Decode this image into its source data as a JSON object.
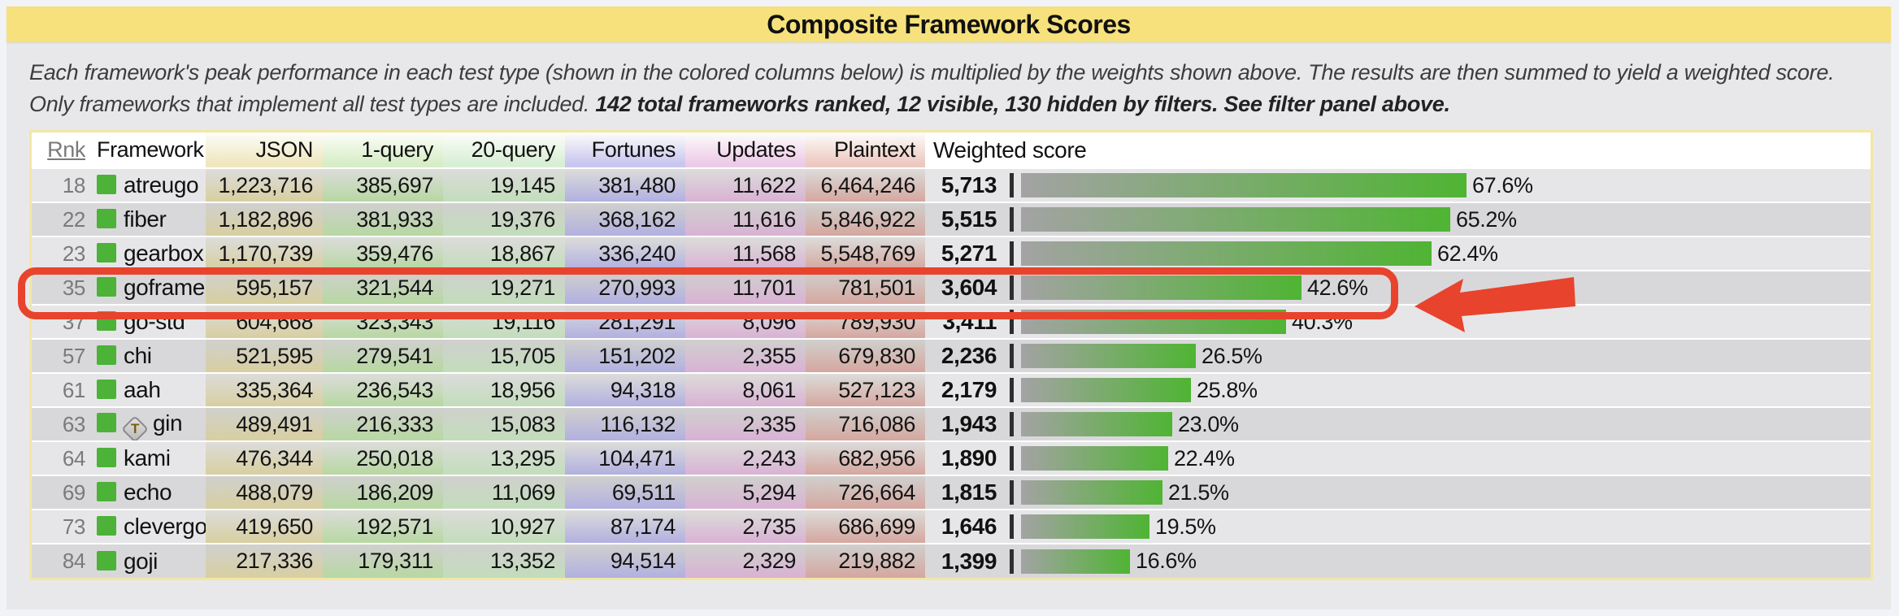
{
  "title": "Composite Framework Scores",
  "description": {
    "normal": "Each framework's peak performance in each test type (shown in the colored columns below) is multiplied by the weights shown above. The results are then summed to yield a weighted score. Only frameworks that implement all test types are included. ",
    "bold": "142 total frameworks ranked, 12 visible, 130 hidden by filters. See filter panel above."
  },
  "table": {
    "rank_header": "Rnk",
    "framework_header": "Framework",
    "columns": [
      {
        "label": "JSON",
        "header_color": "#eee7bd",
        "cell_color": "#d8cfa0"
      },
      {
        "label": "1-query",
        "header_color": "#d7edc6",
        "cell_color": "#b7d8a2"
      },
      {
        "label": "20-query",
        "header_color": "#d8efd4",
        "cell_color": "#c2ddbb"
      },
      {
        "label": "Fortunes",
        "header_color": "#c9c6ef",
        "cell_color": "#b2b0e0"
      },
      {
        "label": "Updates",
        "header_color": "#edcae8",
        "cell_color": "#d9b2d4"
      },
      {
        "label": "Plaintext",
        "header_color": "#ecc8c0",
        "cell_color": "#d5a79f"
      }
    ],
    "weighted_header": "Weighted score",
    "rows": [
      {
        "rank": "18",
        "name": "atreugo",
        "values": [
          "1,223,716",
          "385,697",
          "19,145",
          "381,480",
          "11,622",
          "6,464,246"
        ],
        "score": "5,713",
        "pct": 67.6,
        "pct_label": "67.6%",
        "badge": "",
        "highlight": false
      },
      {
        "rank": "22",
        "name": "fiber",
        "values": [
          "1,182,896",
          "381,933",
          "19,376",
          "368,162",
          "11,616",
          "5,846,922"
        ],
        "score": "5,515",
        "pct": 65.2,
        "pct_label": "65.2%",
        "badge": "",
        "highlight": false
      },
      {
        "rank": "23",
        "name": "gearbox",
        "values": [
          "1,170,739",
          "359,476",
          "18,867",
          "336,240",
          "11,568",
          "5,548,769"
        ],
        "score": "5,271",
        "pct": 62.4,
        "pct_label": "62.4%",
        "badge": "",
        "highlight": false
      },
      {
        "rank": "35",
        "name": "goframe",
        "values": [
          "595,157",
          "321,544",
          "19,271",
          "270,993",
          "11,701",
          "781,501"
        ],
        "score": "3,604",
        "pct": 42.6,
        "pct_label": "42.6%",
        "badge": "",
        "highlight": true
      },
      {
        "rank": "37",
        "name": "go-std",
        "values": [
          "604,668",
          "323,343",
          "19,116",
          "281,291",
          "8,096",
          "789,930"
        ],
        "score": "3,411",
        "pct": 40.3,
        "pct_label": "40.3%",
        "badge": "",
        "highlight": false
      },
      {
        "rank": "57",
        "name": "chi",
        "values": [
          "521,595",
          "279,541",
          "15,705",
          "151,202",
          "2,355",
          "679,830"
        ],
        "score": "2,236",
        "pct": 26.5,
        "pct_label": "26.5%",
        "badge": "",
        "highlight": false
      },
      {
        "rank": "61",
        "name": "aah",
        "values": [
          "335,364",
          "236,543",
          "18,956",
          "94,318",
          "8,061",
          "527,123"
        ],
        "score": "2,179",
        "pct": 25.8,
        "pct_label": "25.8%",
        "badge": "",
        "highlight": false
      },
      {
        "rank": "63",
        "name": "gin",
        "values": [
          "489,491",
          "216,333",
          "15,083",
          "116,132",
          "2,335",
          "716,086"
        ],
        "score": "1,943",
        "pct": 23.0,
        "pct_label": "23.0%",
        "badge": "T",
        "highlight": false
      },
      {
        "rank": "64",
        "name": "kami",
        "values": [
          "476,344",
          "250,018",
          "13,295",
          "104,471",
          "2,243",
          "682,956"
        ],
        "score": "1,890",
        "pct": 22.4,
        "pct_label": "22.4%",
        "badge": "",
        "highlight": false
      },
      {
        "rank": "69",
        "name": "echo",
        "values": [
          "488,079",
          "186,209",
          "11,069",
          "69,511",
          "5,294",
          "726,664"
        ],
        "score": "1,815",
        "pct": 21.5,
        "pct_label": "21.5%",
        "badge": "",
        "highlight": false
      },
      {
        "rank": "73",
        "name": "clevergo",
        "values": [
          "419,650",
          "192,571",
          "10,927",
          "87,174",
          "2,735",
          "686,699"
        ],
        "score": "1,646",
        "pct": 19.5,
        "pct_label": "19.5%",
        "badge": "",
        "highlight": false
      },
      {
        "rank": "84",
        "name": "goji",
        "values": [
          "217,336",
          "179,311",
          "13,352",
          "94,514",
          "2,329",
          "219,882"
        ],
        "score": "1,399",
        "pct": 16.6,
        "pct_label": "16.6%",
        "badge": "",
        "highlight": false
      }
    ]
  },
  "colors": {
    "title_bar": "#f6e17c",
    "panel_bg": "#e8e8eb",
    "row_light": "#e6e6e8",
    "row_dark": "#d8d8da",
    "table_border": "#f2e7a4",
    "bar_green": "#4fb433",
    "bar_gray": "#a3a3a3",
    "legend_square_green": "#4cb238",
    "annotation_red": "#e8432c"
  },
  "annotation": {
    "type": "highlight-box-with-arrow",
    "target_row": "goframe",
    "color": "#e8432c"
  }
}
